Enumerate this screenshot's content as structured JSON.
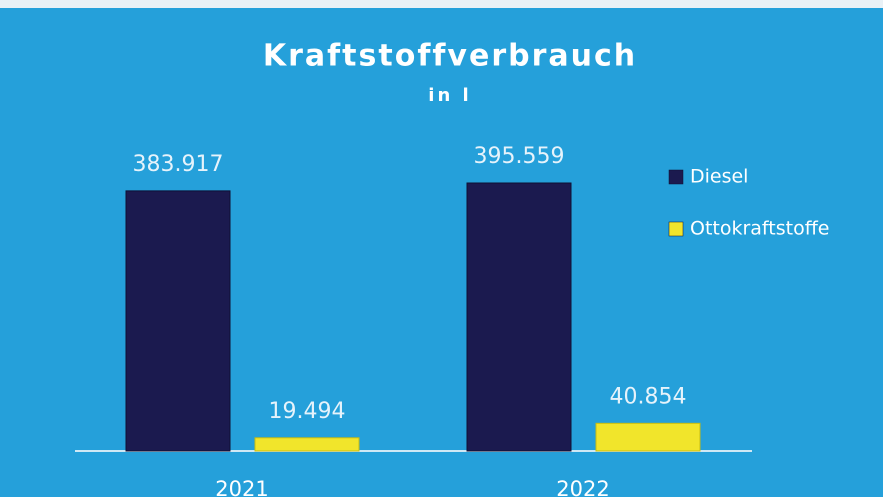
{
  "chart_data": {
    "type": "bar",
    "title": "Kraftstoffverbrauch",
    "subtitle": "in l",
    "categories": [
      "2021",
      "2022"
    ],
    "series": [
      {
        "name": "Diesel",
        "color": "#1b1a4f",
        "values": [
          383917,
          395559
        ],
        "value_labels": [
          "383.917",
          "395.559"
        ]
      },
      {
        "name": "Ottokraftstoffe",
        "color": "#f1e52b",
        "values": [
          19494,
          40854
        ],
        "value_labels": [
          "19.494",
          "40.854"
        ]
      }
    ],
    "legend": "right"
  }
}
